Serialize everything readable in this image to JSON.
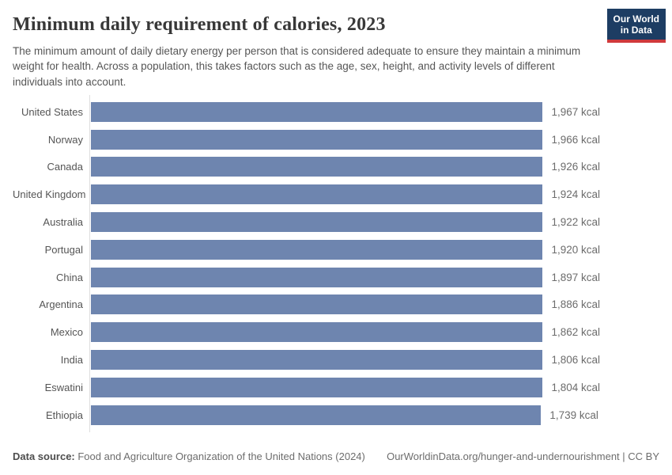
{
  "header": {
    "title": "Minimum daily requirement of calories, 2023",
    "subtitle": "The minimum amount of daily dietary energy per person that is considered adequate to ensure they maintain a minimum weight for health. Across a population, this takes factors such as the age, sex, height, and activity levels of different individuals into account.",
    "logo": {
      "line1": "Our World",
      "line2": "in Data"
    }
  },
  "chart_data": {
    "type": "bar",
    "orientation": "horizontal",
    "title": "Minimum daily requirement of calories, 2023",
    "unit": "kcal",
    "categories": [
      "United States",
      "Norway",
      "Canada",
      "United Kingdom",
      "Australia",
      "Portugal",
      "China",
      "Argentina",
      "Mexico",
      "India",
      "Eswatini",
      "Ethiopia"
    ],
    "values": [
      1967,
      1966,
      1926,
      1924,
      1922,
      1920,
      1897,
      1886,
      1862,
      1806,
      1804,
      1739
    ],
    "value_labels": [
      "1,967 kcal",
      "1,966 kcal",
      "1,926 kcal",
      "1,924 kcal",
      "1,922 kcal",
      "1,920 kcal",
      "1,897 kcal",
      "1,886 kcal",
      "1,862 kcal",
      "1,806 kcal",
      "1,804 kcal",
      "1,739 kcal"
    ],
    "xlim": [
      0,
      1967
    ],
    "grid": false,
    "legend": "none",
    "bar_color": "#6e85af"
  },
  "footer": {
    "datasource_label": "Data source:",
    "datasource_text": " Food and Agriculture Organization of the United Nations (2024)",
    "link_text": "OurWorldinData.org/hunger-and-undernourishment | CC BY"
  },
  "colors": {
    "bar": "#6e85af",
    "axis_line": "#dedede",
    "title_text": "#383838",
    "subtitle_text": "#565656",
    "label_text": "#555555",
    "value_text": "#6c6c6c",
    "logo_background": "#1d3d63",
    "logo_underline": "#d0393b"
  }
}
